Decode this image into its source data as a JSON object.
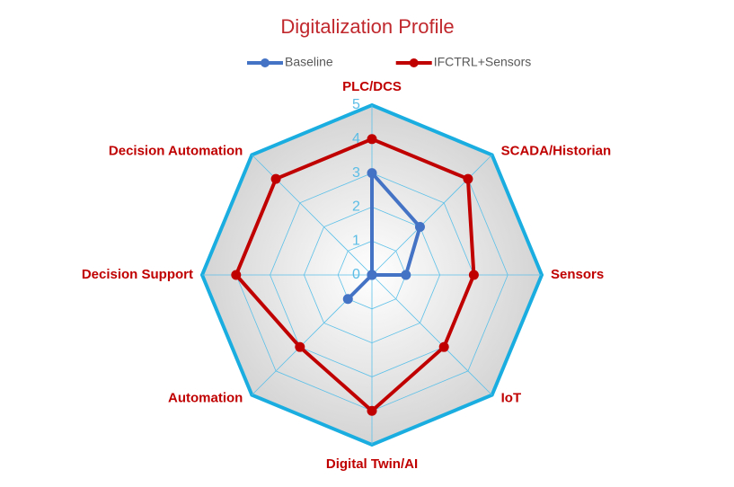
{
  "chart_data": {
    "type": "radar",
    "title": "Digitalization Profile",
    "categories": [
      "PLC/DCS",
      "SCADA/Historian",
      "Sensors",
      "IoT",
      "Digital Twin/AI",
      "Automation",
      "Decision Support",
      "Decision Automation"
    ],
    "series": [
      {
        "name": "Baseline",
        "color": "#4472c4",
        "values": [
          3,
          2,
          1,
          0,
          0,
          1,
          0,
          0
        ]
      },
      {
        "name": "IFCTRL+Sensors",
        "color": "#c00000",
        "values": [
          4,
          4,
          3,
          3,
          4,
          3,
          4,
          4
        ]
      }
    ],
    "rlim": [
      0,
      5
    ],
    "rticks": [
      0,
      1,
      2,
      3,
      4,
      5
    ],
    "grid": true,
    "grid_color": "#5bc0e8",
    "outline_color": "#1aaee0",
    "legend": "top",
    "label_color": "#c00000"
  }
}
